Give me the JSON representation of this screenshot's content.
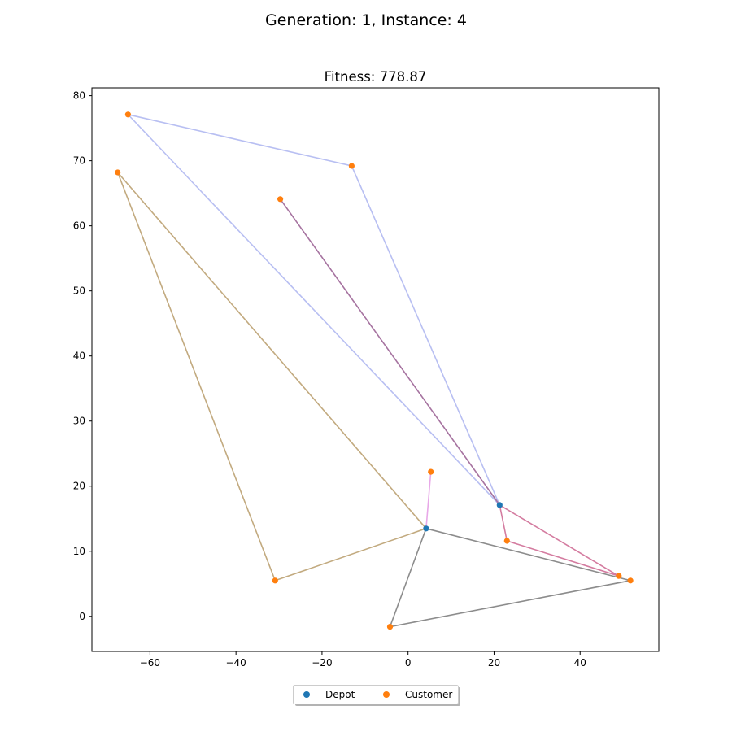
{
  "figure": {
    "suptitle": "Generation: 1, Instance: 4"
  },
  "chart_data": {
    "type": "scatter",
    "title": "Fitness: 778.87",
    "xlabel": "",
    "ylabel": "",
    "xlim": [
      -73.5,
      58.3
    ],
    "ylim": [
      -5.4,
      81.2
    ],
    "xticks": [
      -60,
      -40,
      -20,
      0,
      20,
      40
    ],
    "yticks": [
      0,
      10,
      20,
      30,
      40,
      50,
      60,
      70,
      80
    ],
    "xtick_labels": [
      "−60",
      "−40",
      "−20",
      "0",
      "20",
      "40"
    ],
    "ytick_labels": [
      "0",
      "10",
      "20",
      "30",
      "40",
      "50",
      "60",
      "70",
      "80"
    ],
    "grid": false,
    "legend": {
      "placement": "bottom-center",
      "entries": [
        {
          "name": "Depot",
          "color": "#1f77b4"
        },
        {
          "name": "Customer",
          "color": "#ff7f0e"
        }
      ]
    },
    "series": [
      {
        "name": "Depot",
        "color": "#1f77b4",
        "points": [
          [
            21.3,
            17.1
          ],
          [
            4.2,
            13.5
          ]
        ]
      },
      {
        "name": "Customer",
        "color": "#ff7f0e",
        "points": [
          [
            -65.1,
            77.1
          ],
          [
            -13.1,
            69.2
          ],
          [
            -67.5,
            68.2
          ],
          [
            -29.7,
            64.1
          ],
          [
            5.3,
            22.2
          ],
          [
            23.0,
            11.6
          ],
          [
            49.0,
            6.2
          ],
          [
            51.7,
            5.5
          ],
          [
            -30.9,
            5.5
          ],
          [
            -4.2,
            -1.6
          ]
        ]
      }
    ],
    "routes": [
      {
        "color": "#b8bff2",
        "path": [
          [
            21.3,
            17.1
          ],
          [
            -65.1,
            77.1
          ],
          [
            -13.1,
            69.2
          ],
          [
            21.3,
            17.1
          ]
        ]
      },
      {
        "color": "#a673a0",
        "path": [
          [
            21.3,
            17.1
          ],
          [
            -29.7,
            64.1
          ]
        ]
      },
      {
        "color": "#d47ca0",
        "path": [
          [
            21.3,
            17.1
          ],
          [
            23.0,
            11.6
          ],
          [
            49.0,
            6.2
          ],
          [
            21.3,
            17.1
          ]
        ]
      },
      {
        "color": "#c2aa7f",
        "path": [
          [
            4.2,
            13.5
          ],
          [
            -67.5,
            68.2
          ],
          [
            -30.9,
            5.5
          ],
          [
            4.2,
            13.5
          ]
        ]
      },
      {
        "color": "#e8a8e8",
        "path": [
          [
            4.2,
            13.5
          ],
          [
            5.3,
            22.2
          ]
        ]
      },
      {
        "color": "#8c8c8c",
        "path": [
          [
            4.2,
            13.5
          ],
          [
            51.7,
            5.5
          ],
          [
            -4.2,
            -1.6
          ],
          [
            4.2,
            13.5
          ]
        ]
      }
    ]
  }
}
